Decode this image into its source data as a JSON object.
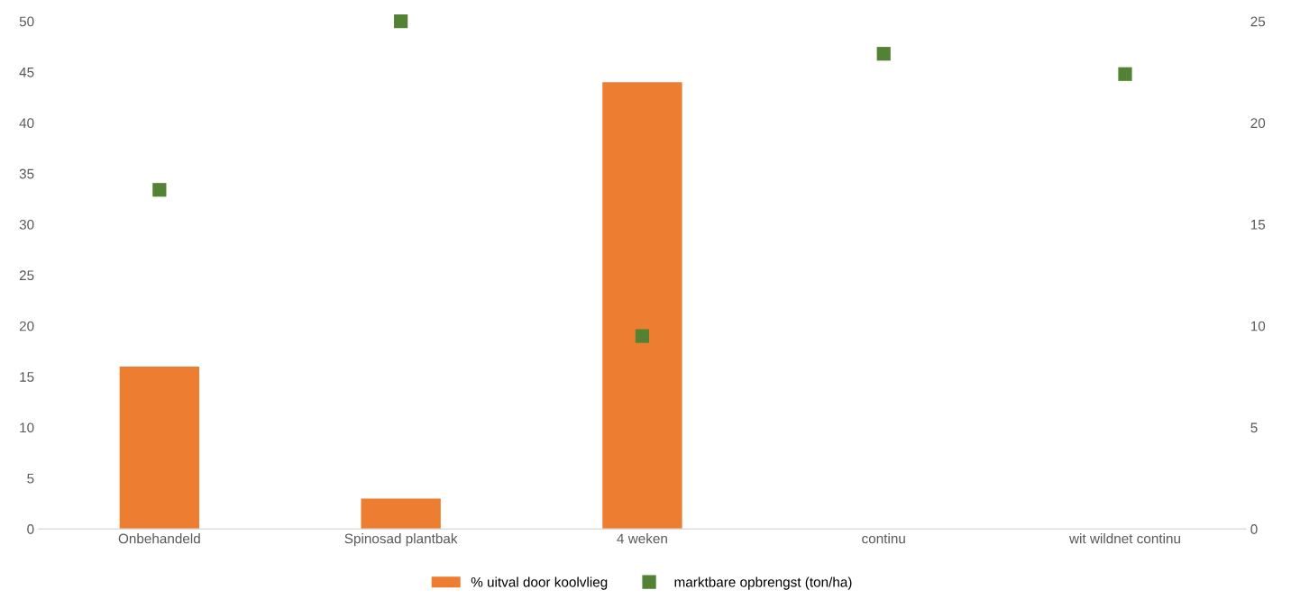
{
  "chart_data": {
    "type": "bar",
    "categories": [
      "Onbehandeld",
      "Spinosad plantbak",
      "4 weken",
      "continu",
      "wit wildnet continu"
    ],
    "series": [
      {
        "name": "% uitval door koolvlieg",
        "color": "#ed7d31",
        "values": [
          16,
          3,
          44,
          null,
          null
        ]
      },
      {
        "name": "marktbare opbrengst (ton/ha)",
        "color": "#548235",
        "type": "scatter",
        "marker": "square",
        "axis": "y2",
        "values": [
          16.7,
          25.0,
          9.5,
          23.4,
          22.4
        ]
      }
    ],
    "ylim": [
      0,
      50
    ],
    "yticks": [
      0,
      5,
      10,
      15,
      20,
      25,
      30,
      35,
      40,
      45,
      50
    ],
    "y2lim": [
      0,
      25
    ],
    "y2ticks": [
      0,
      5,
      10,
      15,
      20,
      25
    ],
    "grid": false,
    "legend": "bottom"
  }
}
